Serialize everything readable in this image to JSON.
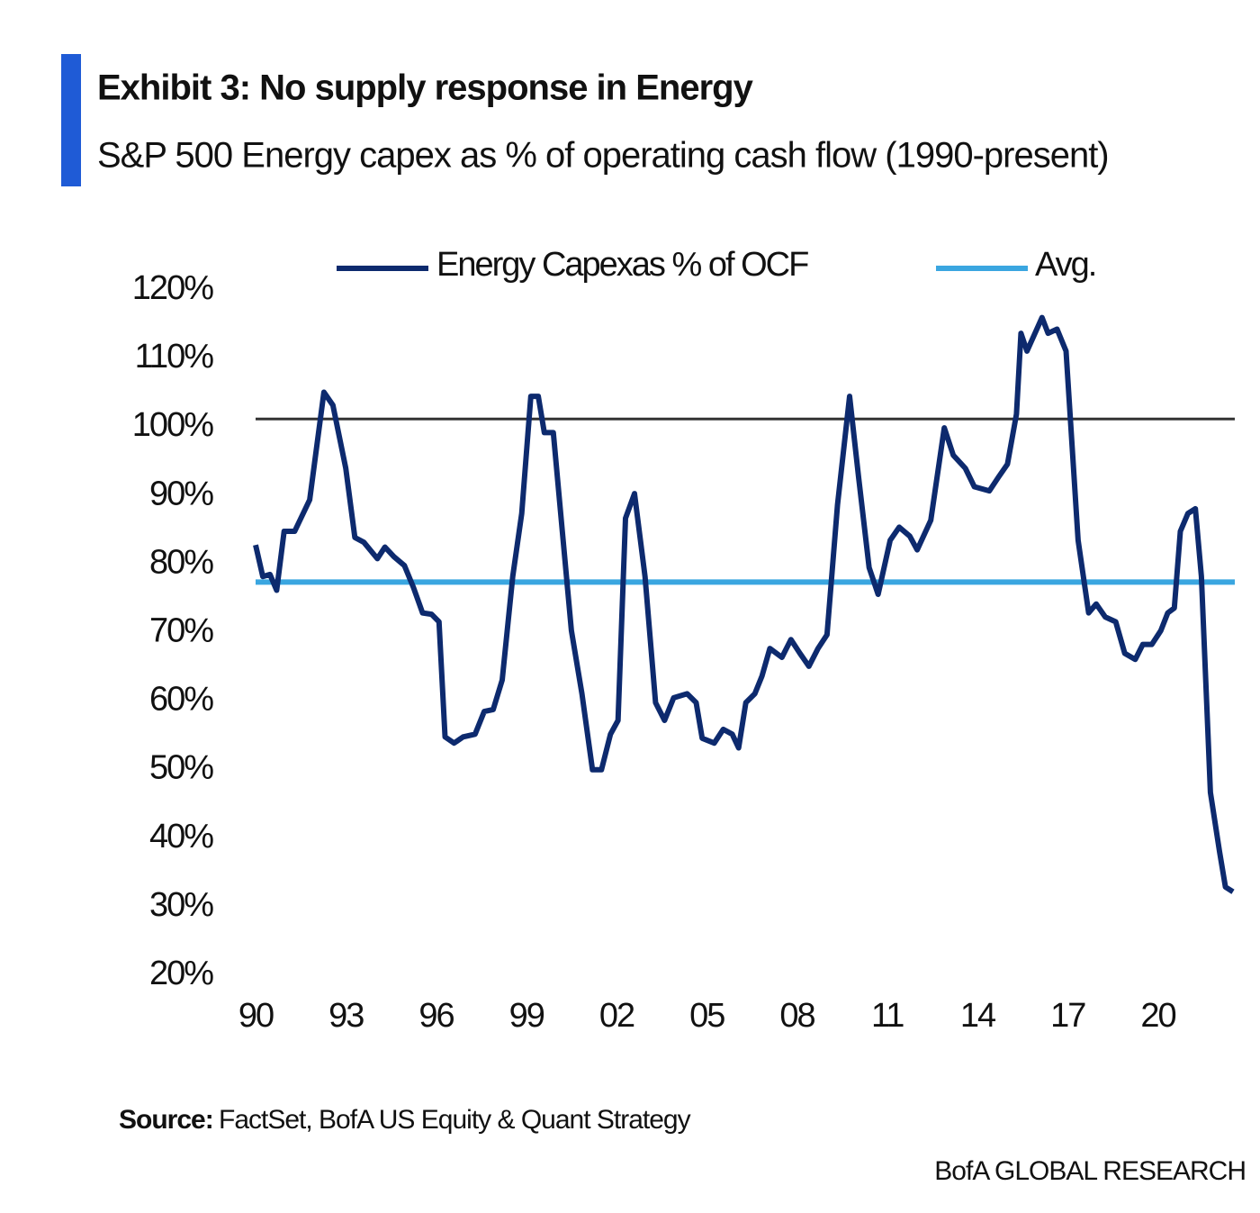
{
  "chart_data": {
    "type": "line",
    "title": "Exhibit 3: No supply response in Energy",
    "subtitle": "S&P 500 Energy capex as % of operating cash flow (1990-present)",
    "x": [
      1990.0,
      1990.24,
      1990.48,
      1990.7,
      1990.95,
      1991.3,
      1991.8,
      1992.27,
      1992.57,
      1993.0,
      1993.3,
      1993.6,
      1994.05,
      1994.3,
      1994.6,
      1994.95,
      1995.25,
      1995.55,
      1995.85,
      1996.1,
      1996.3,
      1996.6,
      1996.9,
      1997.3,
      1997.6,
      1997.9,
      1998.2,
      1998.55,
      1998.85,
      1999.15,
      1999.4,
      1999.6,
      1999.9,
      2000.2,
      2000.5,
      2000.85,
      2001.2,
      2001.5,
      2001.8,
      2002.05,
      2002.3,
      2002.6,
      2002.95,
      2003.3,
      2003.6,
      2003.9,
      2004.35,
      2004.65,
      2004.85,
      2005.25,
      2005.55,
      2005.85,
      2006.06,
      2006.3,
      2006.6,
      2006.84,
      2007.1,
      2007.5,
      2007.8,
      2008.1,
      2008.4,
      2008.7,
      2009.0,
      2009.35,
      2009.75,
      2010.05,
      2010.4,
      2010.7,
      2011.1,
      2011.4,
      2011.75,
      2012.0,
      2012.45,
      2012.9,
      2013.2,
      2013.6,
      2013.9,
      2014.4,
      2014.7,
      2015.0,
      2015.3,
      2015.45,
      2015.65,
      2016.15,
      2016.35,
      2016.65,
      2016.95,
      2017.35,
      2017.7,
      2017.95,
      2018.25,
      2018.6,
      2018.9,
      2019.25,
      2019.5,
      2019.8,
      2020.1,
      2020.33,
      2020.55,
      2020.75,
      2021.0,
      2021.25,
      2021.45,
      2021.75,
      2022.05,
      2022.25,
      2022.5
    ],
    "series": [
      {
        "name": "Energy Capexas % of OCF",
        "color": "#0d2a6e",
        "values": [
          81.6,
          77.0,
          77.3,
          75.0,
          83.6,
          83.6,
          88.2,
          103.9,
          102,
          92.8,
          82.7,
          82,
          79.6,
          81.3,
          79.9,
          78.6,
          75.4,
          71.7,
          71.5,
          70.4,
          53.6,
          52.7,
          53.6,
          54,
          57.3,
          57.6,
          61.9,
          77,
          86.2,
          103.3,
          103.3,
          98,
          98,
          83.6,
          69.1,
          59.9,
          48.8,
          48.8,
          54,
          56,
          85.5,
          89.1,
          77,
          58.6,
          56,
          59.3,
          59.9,
          58.6,
          53.4,
          52.7,
          54.7,
          54,
          52,
          58.6,
          59.9,
          62.5,
          66.5,
          65.2,
          67.8,
          65.8,
          63.9,
          66.5,
          68.5,
          87.5,
          103.3,
          91.5,
          78.3,
          74.4,
          82.3,
          84.2,
          82.9,
          80.9,
          85.2,
          98.7,
          94.7,
          92.8,
          90.1,
          89.5,
          91.5,
          93.4,
          100.7,
          112.5,
          109.9,
          114.8,
          112.5,
          113.1,
          109.9,
          82.3,
          71.7,
          73,
          71.1,
          70.4,
          65.8,
          64.9,
          67.1,
          67.1,
          69.1,
          71.7,
          72.4,
          83.6,
          86.2,
          86.9,
          77,
          45.5,
          36.9,
          31.7,
          31
        ]
      }
    ],
    "average": {
      "name": "Avg.",
      "value": 76.2,
      "color": "#3aa6e0"
    },
    "reference_line": {
      "value": 100,
      "color": "#333333"
    },
    "xlim": [
      1990,
      2022.5
    ],
    "xticks": [
      {
        "value": 1990,
        "label": "90"
      },
      {
        "value": 1993,
        "label": "93"
      },
      {
        "value": 1996,
        "label": "96"
      },
      {
        "value": 1999,
        "label": "99"
      },
      {
        "value": 2002,
        "label": "02"
      },
      {
        "value": 2005,
        "label": "05"
      },
      {
        "value": 2008,
        "label": "08"
      },
      {
        "value": 2011,
        "label": "11"
      },
      {
        "value": 2014,
        "label": "14"
      },
      {
        "value": 2017,
        "label": "17"
      },
      {
        "value": 2020,
        "label": "20"
      }
    ],
    "ylim": [
      20,
      120
    ],
    "yticks": [
      {
        "value": 120,
        "label": "120%"
      },
      {
        "value": 110,
        "label": "110%"
      },
      {
        "value": 100,
        "label": "100%"
      },
      {
        "value": 90,
        "label": "90%"
      },
      {
        "value": 80,
        "label": "80%"
      },
      {
        "value": 70,
        "label": "70%"
      },
      {
        "value": 60,
        "label": "60%"
      },
      {
        "value": 50,
        "label": "50%"
      },
      {
        "value": 40,
        "label": "40%"
      },
      {
        "value": 30,
        "label": "30%"
      },
      {
        "value": 20,
        "label": "20%"
      }
    ],
    "source_label": "Source:",
    "source": "FactSet, BofA US Equity & Quant Strategy",
    "footer": "BofA GLOBAL RESEARCH"
  }
}
